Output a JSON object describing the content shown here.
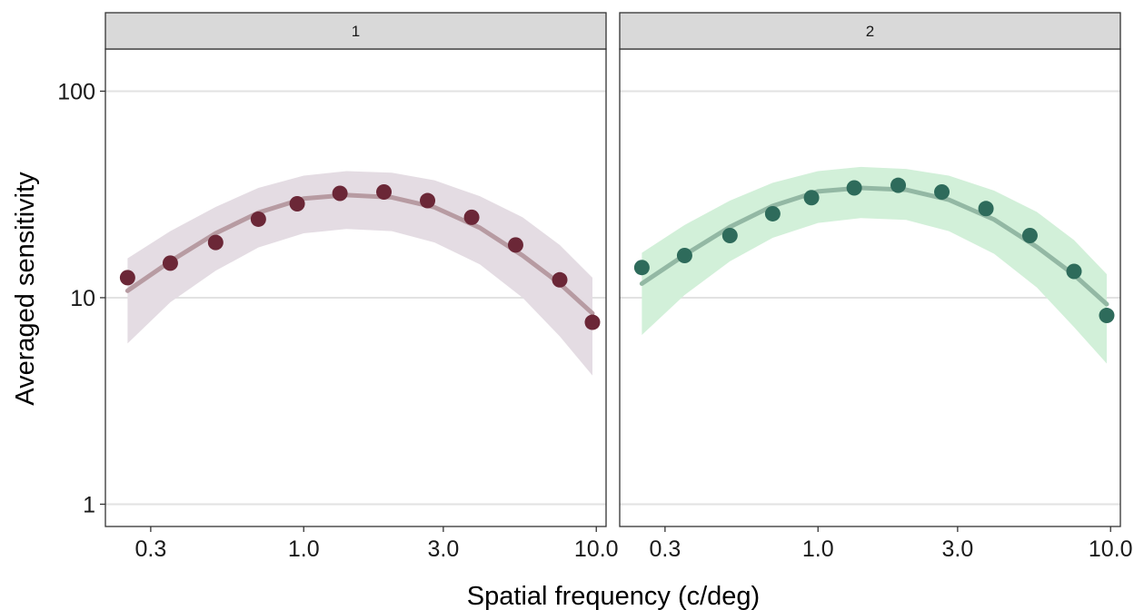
{
  "chart_data": {
    "type": "scatter",
    "title": "",
    "xlabel": "Spatial frequency (c/deg)",
    "ylabel": "Averaged sensitivity",
    "x_scale": "log",
    "y_scale": "log",
    "xlim": [
      0.21,
      10.8
    ],
    "ylim": [
      0.78,
      160
    ],
    "x_ticks": [
      0.3,
      1.0,
      3.0,
      10.0
    ],
    "x_tick_labels": [
      "0.3",
      "1.0",
      "3.0",
      "10.0"
    ],
    "y_ticks": [
      1,
      10,
      100
    ],
    "y_tick_labels": [
      "1",
      "10",
      "100"
    ],
    "grid": "horizontal major",
    "legend": "none",
    "panels": [
      {
        "strip_label": "1",
        "point_color": "#6b2737",
        "fit_color": "#b79ba2",
        "band_color": "#e4dce3",
        "points": {
          "x": [
            0.25,
            0.35,
            0.5,
            0.7,
            0.95,
            1.33,
            1.88,
            2.65,
            3.75,
            5.3,
            7.5,
            9.7
          ],
          "y": [
            12.5,
            14.7,
            18.5,
            24,
            28.5,
            32,
            32.5,
            29.5,
            24.5,
            18,
            12.2,
            7.6
          ]
        },
        "fit": {
          "x": [
            0.25,
            0.35,
            0.5,
            0.7,
            1.0,
            1.4,
            2.0,
            2.8,
            4.0,
            5.6,
            7.5,
            9.7
          ],
          "y": [
            10.8,
            15.0,
            20.5,
            25.8,
            30.2,
            31.4,
            30.6,
            27.4,
            21.8,
            16.0,
            11.7,
            8.4
          ]
        },
        "band": {
          "x": [
            0.25,
            0.35,
            0.5,
            0.7,
            1.0,
            1.4,
            2.0,
            2.8,
            4.0,
            5.6,
            7.5,
            9.7
          ],
          "upper": [
            15.5,
            21.0,
            27.5,
            34.0,
            39.0,
            41.0,
            40.3,
            37.0,
            31.0,
            24.5,
            18.0,
            12.5
          ],
          "lower": [
            6.0,
            9.5,
            13.5,
            17.5,
            20.5,
            21.5,
            21.0,
            18.5,
            14.5,
            10.0,
            6.5,
            4.2
          ]
        }
      },
      {
        "strip_label": "2",
        "point_color": "#2e6b5b",
        "fit_color": "#93b8a4",
        "band_color": "#d2f0d9",
        "points": {
          "x": [
            0.25,
            0.35,
            0.5,
            0.7,
            0.95,
            1.33,
            1.88,
            2.65,
            3.75,
            5.3,
            7.5,
            9.7
          ],
          "y": [
            14,
            16,
            20,
            25.5,
            30.5,
            34,
            35,
            32.5,
            27,
            20,
            13.4,
            8.2
          ]
        },
        "fit": {
          "x": [
            0.25,
            0.35,
            0.5,
            0.7,
            1.0,
            1.4,
            2.0,
            2.8,
            4.0,
            5.6,
            7.5,
            9.7
          ],
          "y": [
            11.7,
            16.1,
            22.0,
            27.8,
            32.7,
            34.0,
            33.3,
            29.8,
            23.9,
            17.6,
            12.9,
            9.3
          ]
        },
        "band": {
          "x": [
            0.25,
            0.35,
            0.5,
            0.7,
            1.0,
            1.4,
            2.0,
            2.8,
            4.0,
            5.6,
            7.5,
            9.7
          ],
          "upper": [
            16.5,
            22.5,
            29.5,
            36.0,
            41.0,
            43.0,
            42.0,
            39.0,
            33.0,
            26.0,
            19.0,
            13.0
          ],
          "lower": [
            6.6,
            10.3,
            15.0,
            19.5,
            23.0,
            24.3,
            23.8,
            21.0,
            16.3,
            11.2,
            7.2,
            4.8
          ]
        }
      }
    ]
  }
}
